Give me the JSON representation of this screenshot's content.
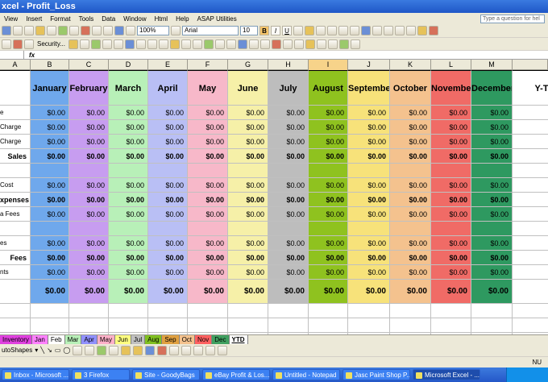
{
  "window": {
    "title": "xcel - Profit_Loss"
  },
  "menu": [
    "View",
    "Insert",
    "Format",
    "Tools",
    "Data",
    "Window",
    "Html",
    "Help",
    "ASAP Utilities"
  ],
  "ask_placeholder": "Type a question for hel",
  "toolbar": {
    "zoom": "100%",
    "font": "Arial",
    "size": "10",
    "bold": "B",
    "italic": "I",
    "underline": "U",
    "security": "Security..."
  },
  "formula": {
    "fx": "fx"
  },
  "columns": [
    "A",
    "B",
    "C",
    "D",
    "E",
    "F",
    "G",
    "H",
    "I",
    "J",
    "K",
    "L",
    "M"
  ],
  "months": [
    {
      "name": "January",
      "color": "#6fa8ec"
    },
    {
      "name": "February",
      "color": "#c79df0"
    },
    {
      "name": "March",
      "color": "#b8f0b8"
    },
    {
      "name": "April",
      "color": "#b9bff5"
    },
    {
      "name": "May",
      "color": "#f7b8c9"
    },
    {
      "name": "June",
      "color": "#f6f0a8"
    },
    {
      "name": "July",
      "color": "#bdbdbd"
    },
    {
      "name": "August",
      "color": "#8fc21f"
    },
    {
      "name": "September",
      "color": "#f7e27a"
    },
    {
      "name": "October",
      "color": "#f4c28e"
    },
    {
      "name": "November",
      "color": "#f06b66"
    },
    {
      "name": "December",
      "color": "#2e9960"
    }
  ],
  "ytd_label": "Y-T-D",
  "rows": [
    {
      "label": "e",
      "bold": false,
      "val": "$0.00"
    },
    {
      "label": "Charge",
      "bold": false,
      "val": "$0.00"
    },
    {
      "label": "Charge",
      "bold": false,
      "val": "$0.00"
    },
    {
      "label": "Sales",
      "bold": true,
      "val": "$0.00"
    },
    {
      "label": "",
      "bold": false,
      "val": ""
    },
    {
      "label": "Cost",
      "bold": false,
      "val": "$0.00"
    },
    {
      "label": "xpenses",
      "bold": true,
      "val": "$0.00"
    },
    {
      "label": "a Fees",
      "bold": false,
      "val": "$0.00"
    },
    {
      "label": "",
      "bold": false,
      "val": ""
    },
    {
      "label": "es",
      "bold": false,
      "val": "$0.00"
    },
    {
      "label": "Fees",
      "bold": true,
      "val": "$0.00"
    },
    {
      "label": "nts",
      "bold": false,
      "val": "$0.00"
    }
  ],
  "total_val": "$0.00",
  "sheet_tabs": [
    "Inventory",
    "Jan",
    "Feb",
    "Mar",
    "Apr",
    "May",
    "Jun",
    "Jul",
    "Aug",
    "Sep",
    "Oct",
    "Nov",
    "Dec",
    "YTD"
  ],
  "tab_colors": [
    "#e040e0",
    "#ff80ff",
    "#ffffff",
    "#b8f0b8",
    "#9090ff",
    "#ffb0c8",
    "#ffff80",
    "#c0c0c0",
    "#80c020",
    "#e0a040",
    "#f4c28e",
    "#ff6060",
    "#40a060",
    "#ffffff"
  ],
  "active_tab": "YTD",
  "draw": {
    "autoshapes": "utoShapes"
  },
  "status": {
    "num": "NU"
  },
  "taskbar": [
    "Inbox - Microsoft ...",
    "3 Firefox",
    "Site - GoodyBags",
    "eBay Profit & Los...",
    "Untitled - Notepad",
    "Jasc Paint Shop P...",
    "Microsoft Excel - ..."
  ]
}
